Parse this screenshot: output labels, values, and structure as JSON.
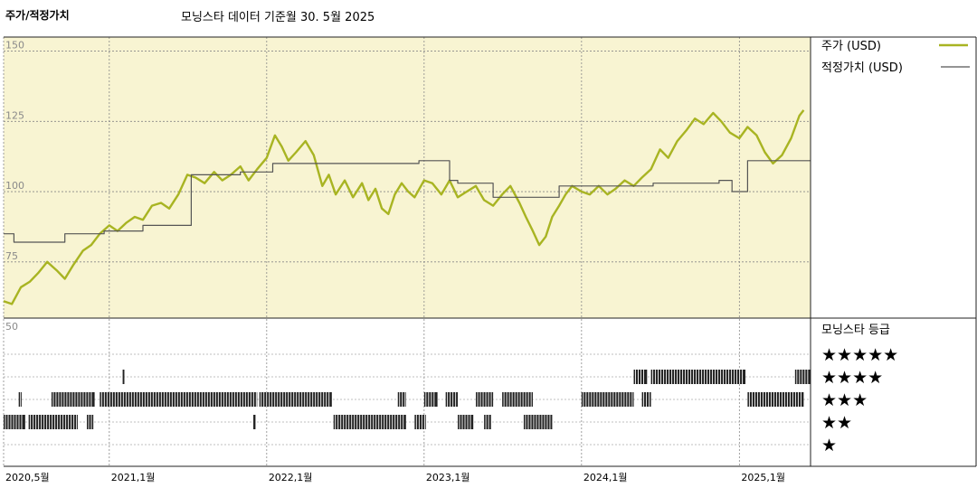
{
  "header": {
    "title": "주가/적정가치",
    "subtitle": "모닝스타 데이터 기준월 30. 5월 2025"
  },
  "colors": {
    "price_line": "#a8b422",
    "fair_value_line": "#555555",
    "plot_background": "#f8f4d2",
    "rating_bar": "#222222",
    "grid": "#888888"
  },
  "chart_data": [
    {
      "type": "line",
      "title": "주가/적정가치",
      "subtitle": "모닝스타 데이터 기준월 30. 5월 2025",
      "x_range": [
        "2020-05-01",
        "2025-06-15"
      ],
      "ylim": [
        55,
        155
      ],
      "y_ticks": [
        75,
        100,
        125,
        150
      ],
      "x_ticks": [
        {
          "date": "2020-05-01",
          "label": "2020,5월"
        },
        {
          "date": "2021-01-01",
          "label": "2021,1월"
        },
        {
          "date": "2022-01-01",
          "label": "2022,1월"
        },
        {
          "date": "2023-01-01",
          "label": "2023,1월"
        },
        {
          "date": "2024-01-01",
          "label": "2024,1월"
        },
        {
          "date": "2025-01-01",
          "label": "2025,1월"
        }
      ],
      "grid": true,
      "legend_position": "right",
      "series": [
        {
          "name": "주가 (USD)",
          "points": [
            [
              "2020-05-01",
              61
            ],
            [
              "2020-05-20",
              60
            ],
            [
              "2020-06-10",
              66
            ],
            [
              "2020-07-01",
              68
            ],
            [
              "2020-07-20",
              71
            ],
            [
              "2020-08-10",
              75
            ],
            [
              "2020-09-01",
              72
            ],
            [
              "2020-09-20",
              69
            ],
            [
              "2020-10-10",
              74
            ],
            [
              "2020-11-01",
              79
            ],
            [
              "2020-11-20",
              81
            ],
            [
              "2020-12-10",
              85
            ],
            [
              "2021-01-01",
              88
            ],
            [
              "2021-01-20",
              86
            ],
            [
              "2021-02-10",
              89
            ],
            [
              "2021-03-01",
              91
            ],
            [
              "2021-03-20",
              90
            ],
            [
              "2021-04-10",
              95
            ],
            [
              "2021-05-01",
              96
            ],
            [
              "2021-05-20",
              94
            ],
            [
              "2021-06-10",
              99
            ],
            [
              "2021-07-01",
              106
            ],
            [
              "2021-07-20",
              105
            ],
            [
              "2021-08-10",
              103
            ],
            [
              "2021-09-01",
              107
            ],
            [
              "2021-09-20",
              104
            ],
            [
              "2021-10-10",
              106
            ],
            [
              "2021-11-01",
              109
            ],
            [
              "2021-11-20",
              104
            ],
            [
              "2021-12-10",
              108
            ],
            [
              "2022-01-01",
              112
            ],
            [
              "2022-01-20",
              120
            ],
            [
              "2022-02-05",
              116
            ],
            [
              "2022-02-20",
              111
            ],
            [
              "2022-03-10",
              114
            ],
            [
              "2022-04-01",
              118
            ],
            [
              "2022-04-20",
              113
            ],
            [
              "2022-05-10",
              102
            ],
            [
              "2022-05-25",
              106
            ],
            [
              "2022-06-10",
              99
            ],
            [
              "2022-07-01",
              104
            ],
            [
              "2022-07-20",
              98
            ],
            [
              "2022-08-10",
              103
            ],
            [
              "2022-08-25",
              97
            ],
            [
              "2022-09-10",
              101
            ],
            [
              "2022-09-25",
              94
            ],
            [
              "2022-10-10",
              92
            ],
            [
              "2022-10-25",
              99
            ],
            [
              "2022-11-10",
              103
            ],
            [
              "2022-11-25",
              100
            ],
            [
              "2022-12-10",
              98
            ],
            [
              "2023-01-01",
              104
            ],
            [
              "2023-01-20",
              103
            ],
            [
              "2023-02-10",
              99
            ],
            [
              "2023-03-01",
              104
            ],
            [
              "2023-03-20",
              98
            ],
            [
              "2023-04-10",
              100
            ],
            [
              "2023-05-01",
              102
            ],
            [
              "2023-05-20",
              97
            ],
            [
              "2023-06-10",
              95
            ],
            [
              "2023-07-01",
              99
            ],
            [
              "2023-07-20",
              102
            ],
            [
              "2023-08-10",
              96
            ],
            [
              "2023-08-25",
              91
            ],
            [
              "2023-09-10",
              86
            ],
            [
              "2023-09-25",
              81
            ],
            [
              "2023-10-10",
              84
            ],
            [
              "2023-10-25",
              91
            ],
            [
              "2023-11-10",
              95
            ],
            [
              "2023-11-25",
              99
            ],
            [
              "2023-12-10",
              102
            ],
            [
              "2024-01-01",
              100
            ],
            [
              "2024-01-20",
              99
            ],
            [
              "2024-02-10",
              102
            ],
            [
              "2024-03-01",
              99
            ],
            [
              "2024-03-20",
              101
            ],
            [
              "2024-04-10",
              104
            ],
            [
              "2024-05-01",
              102
            ],
            [
              "2024-05-20",
              105
            ],
            [
              "2024-06-10",
              108
            ],
            [
              "2024-07-01",
              115
            ],
            [
              "2024-07-20",
              112
            ],
            [
              "2024-08-10",
              118
            ],
            [
              "2024-09-01",
              122
            ],
            [
              "2024-09-20",
              126
            ],
            [
              "2024-10-10",
              124
            ],
            [
              "2024-11-01",
              128
            ],
            [
              "2024-11-20",
              125
            ],
            [
              "2024-12-10",
              121
            ],
            [
              "2025-01-01",
              119
            ],
            [
              "2025-01-20",
              123
            ],
            [
              "2025-02-10",
              120
            ],
            [
              "2025-03-01",
              114
            ],
            [
              "2025-03-20",
              110
            ],
            [
              "2025-04-10",
              113
            ],
            [
              "2025-05-01",
              119
            ],
            [
              "2025-05-20",
              127
            ],
            [
              "2025-05-30",
              129
            ]
          ]
        },
        {
          "name": "적정가치 (USD)",
          "points": [
            [
              "2020-05-01",
              85
            ],
            [
              "2020-05-25",
              85
            ],
            [
              "2020-05-25",
              82
            ],
            [
              "2020-09-20",
              82
            ],
            [
              "2020-09-20",
              85
            ],
            [
              "2020-12-20",
              85
            ],
            [
              "2020-12-20",
              86
            ],
            [
              "2021-03-20",
              86
            ],
            [
              "2021-03-20",
              88
            ],
            [
              "2021-07-10",
              88
            ],
            [
              "2021-07-10",
              106
            ],
            [
              "2021-11-01",
              106
            ],
            [
              "2021-11-01",
              107
            ],
            [
              "2022-01-15",
              107
            ],
            [
              "2022-01-15",
              110
            ],
            [
              "2022-12-20",
              110
            ],
            [
              "2022-12-20",
              111
            ],
            [
              "2023-03-01",
              111
            ],
            [
              "2023-03-01",
              104
            ],
            [
              "2023-03-20",
              104
            ],
            [
              "2023-03-20",
              103
            ],
            [
              "2023-06-10",
              103
            ],
            [
              "2023-06-10",
              98
            ],
            [
              "2023-11-10",
              98
            ],
            [
              "2023-11-10",
              102
            ],
            [
              "2024-06-15",
              102
            ],
            [
              "2024-06-15",
              103
            ],
            [
              "2024-11-15",
              103
            ],
            [
              "2024-11-15",
              104
            ],
            [
              "2024-12-15",
              104
            ],
            [
              "2024-12-15",
              100
            ],
            [
              "2025-01-20",
              100
            ],
            [
              "2025-01-20",
              111
            ],
            [
              "2025-06-15",
              111
            ]
          ]
        }
      ]
    },
    {
      "type": "timeline",
      "title": "모닝스타 등급",
      "levels": [
        "★★★★★",
        "★★★★",
        "★★★",
        "★★",
        "★"
      ],
      "y_tick": "50",
      "segments": [
        {
          "level": 4,
          "start": "2020-05-01",
          "end": "2020-06-20"
        },
        {
          "level": 4,
          "start": "2020-06-28",
          "end": "2020-10-20"
        },
        {
          "level": 4,
          "start": "2020-11-10",
          "end": "2020-11-25"
        },
        {
          "level": 4,
          "start": "2021-12-01",
          "end": "2021-12-06"
        },
        {
          "level": 4,
          "start": "2022-06-05",
          "end": "2022-11-20"
        },
        {
          "level": 4,
          "start": "2022-12-10",
          "end": "2023-01-05"
        },
        {
          "level": 4,
          "start": "2023-03-20",
          "end": "2023-04-25"
        },
        {
          "level": 4,
          "start": "2023-05-20",
          "end": "2023-06-05"
        },
        {
          "level": 4,
          "start": "2023-08-20",
          "end": "2023-10-25"
        },
        {
          "level": 3,
          "start": "2020-06-05",
          "end": "2020-06-12"
        },
        {
          "level": 3,
          "start": "2020-08-20",
          "end": "2020-11-28"
        },
        {
          "level": 3,
          "start": "2020-12-10",
          "end": "2021-12-10"
        },
        {
          "level": 3,
          "start": "2021-12-15",
          "end": "2022-06-01"
        },
        {
          "level": 3,
          "start": "2022-11-01",
          "end": "2022-11-20"
        },
        {
          "level": 3,
          "start": "2023-01-01",
          "end": "2023-02-01"
        },
        {
          "level": 3,
          "start": "2023-02-20",
          "end": "2023-03-20"
        },
        {
          "level": 3,
          "start": "2023-05-01",
          "end": "2023-06-10"
        },
        {
          "level": 3,
          "start": "2023-07-01",
          "end": "2023-09-10"
        },
        {
          "level": 3,
          "start": "2024-01-01",
          "end": "2024-05-01"
        },
        {
          "level": 3,
          "start": "2024-05-20",
          "end": "2024-06-10"
        },
        {
          "level": 3,
          "start": "2025-01-20",
          "end": "2025-05-30"
        },
        {
          "level": 2,
          "start": "2021-02-01",
          "end": "2021-02-05"
        },
        {
          "level": 2,
          "start": "2024-05-01",
          "end": "2024-06-01"
        },
        {
          "level": 2,
          "start": "2024-06-10",
          "end": "2025-01-15"
        },
        {
          "level": 2,
          "start": "2025-05-10",
          "end": "2025-06-15"
        }
      ]
    }
  ]
}
